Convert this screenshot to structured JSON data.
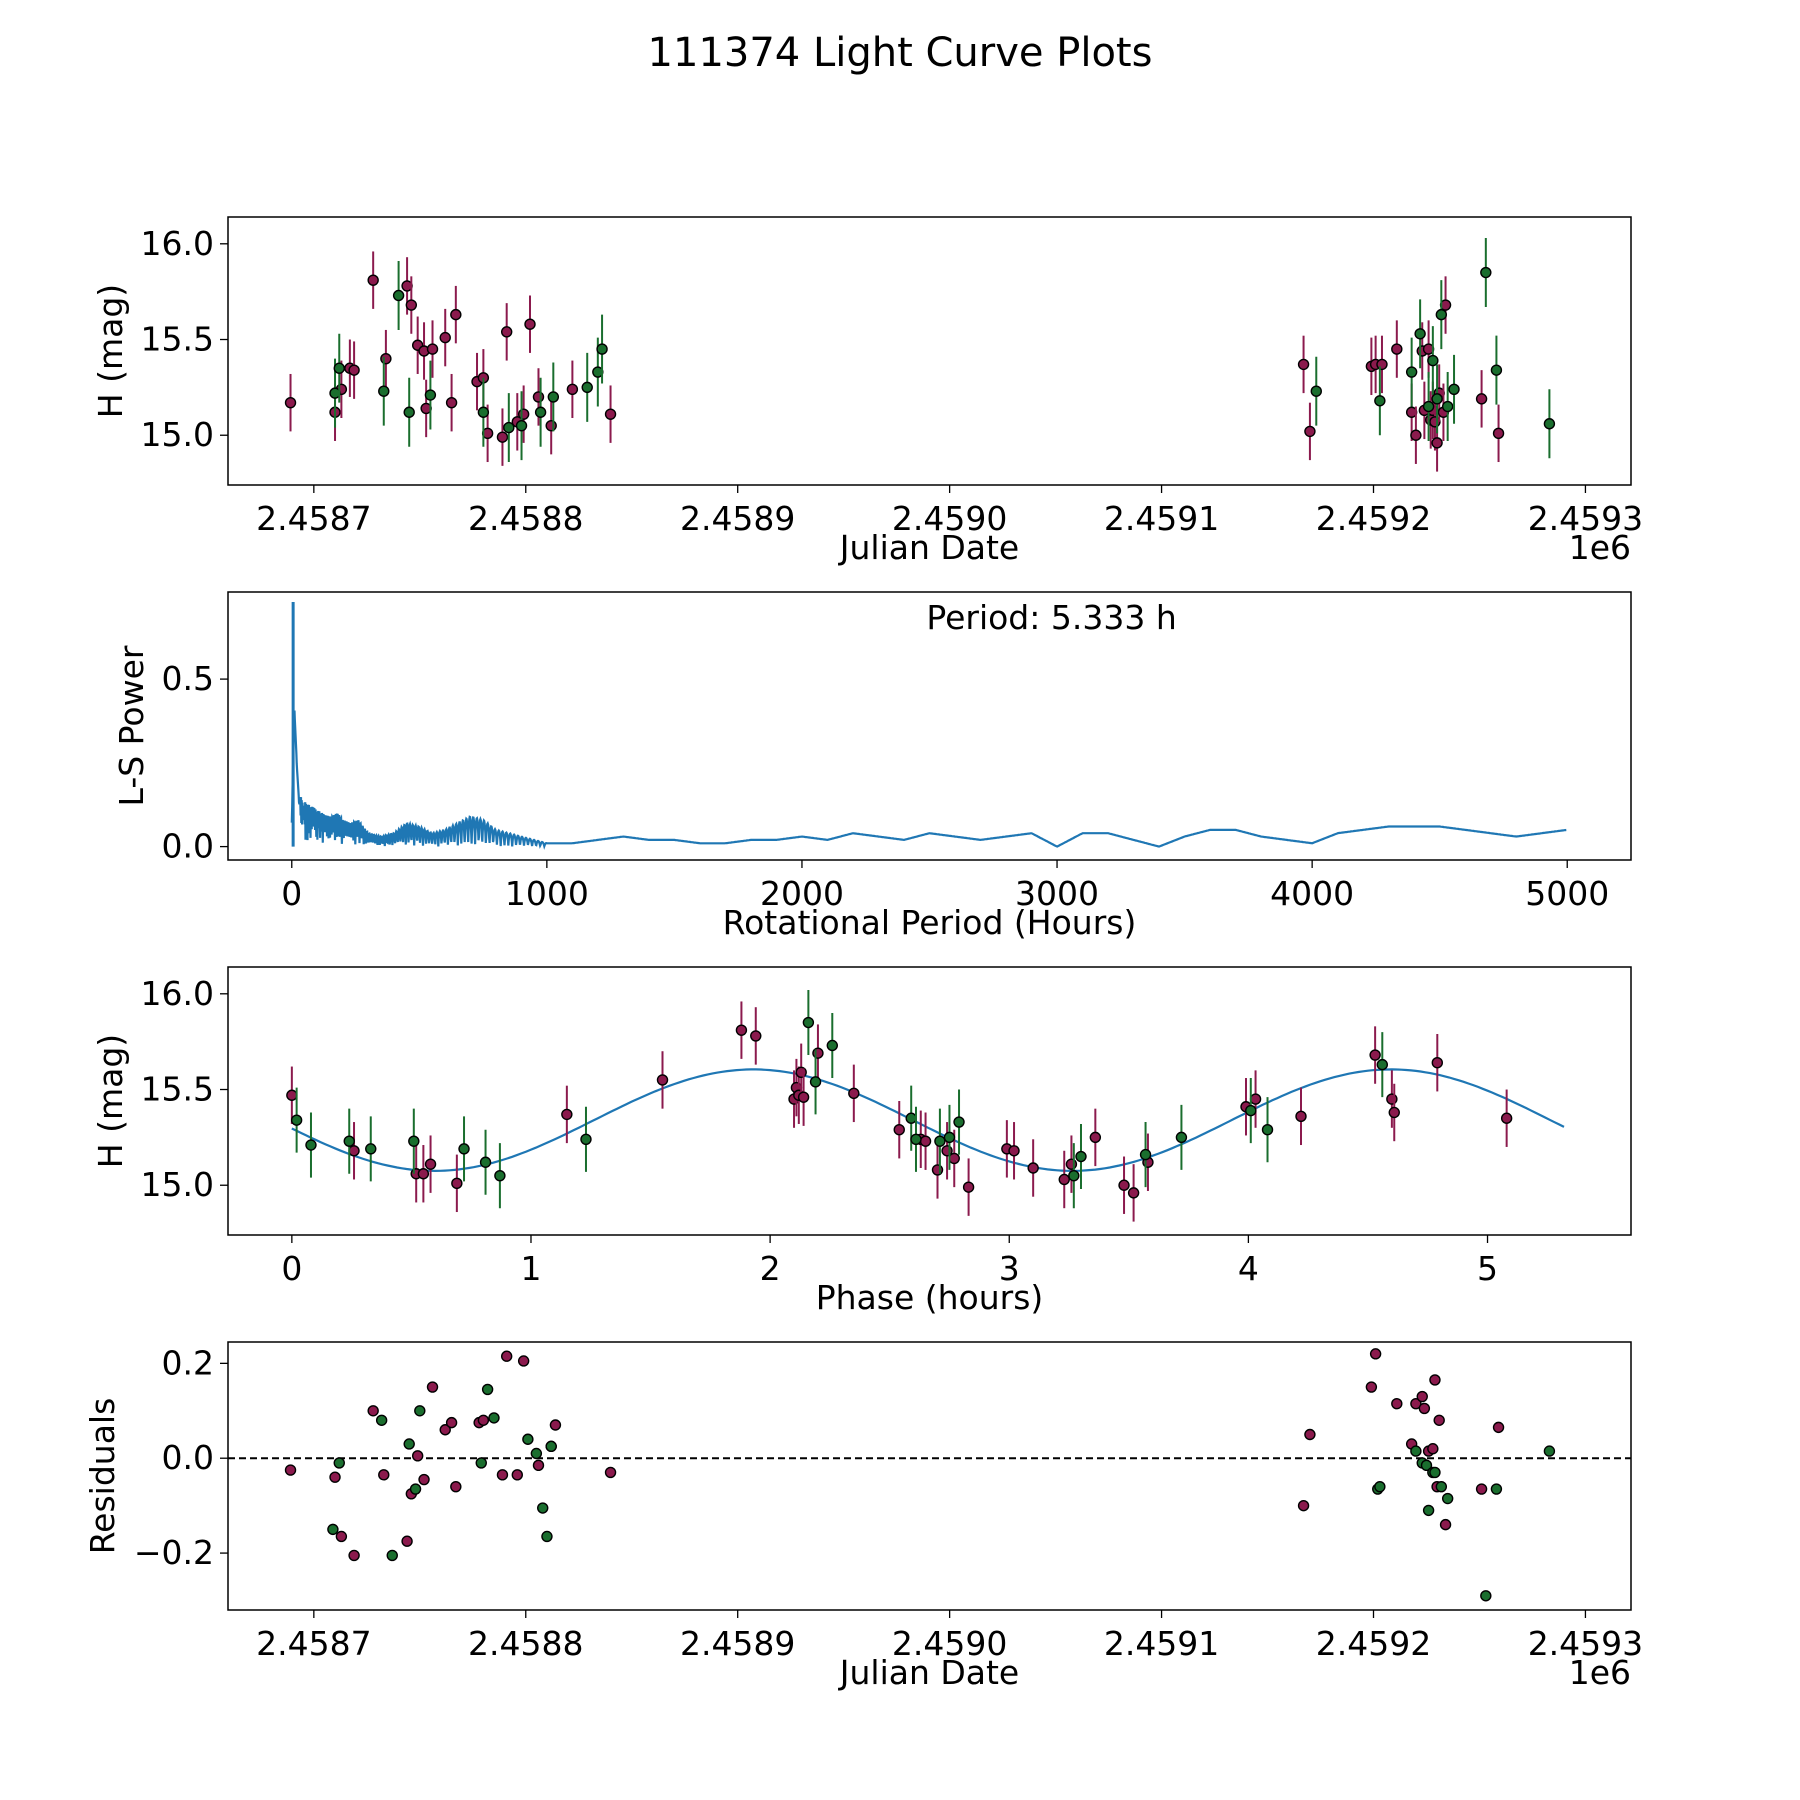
{
  "figure_title": "111374 Light Curve Plots",
  "colors": {
    "red": "#8b1a4d",
    "green": "#1a6e2e",
    "curve": "#1f77b4",
    "axis": "#000000",
    "marker_edge": "#000000"
  },
  "chart_data": [
    {
      "id": "lightcurve",
      "type": "scatter",
      "xlabel": "Julian Date",
      "ylabel": "H (mag)",
      "x_offset_label": "1e6",
      "xlim": [
        2458659.5,
        2459321.5
      ],
      "ylim": [
        14.74,
        16.14
      ],
      "x_ticks": [
        2458700,
        2458800,
        2458900,
        2459000,
        2459100,
        2459200,
        2459300
      ],
      "x_tick_labels": [
        "2.4587",
        "2.4588",
        "2.4589",
        "2.4590",
        "2.4591",
        "2.4592",
        "2.4593"
      ],
      "y_ticks": [
        15.0,
        15.5,
        16.0
      ],
      "y_tick_labels": [
        "15.0",
        "15.5",
        "16.0"
      ],
      "series": [
        {
          "name": "red",
          "color_key": "red",
          "err": 0.15,
          "x": [
            2458689,
            2458710,
            2458713,
            2458717,
            2458719,
            2458728,
            2458734,
            2458744,
            2458746,
            2458749,
            2458752,
            2458753,
            2458756,
            2458762,
            2458765,
            2458767,
            2458777,
            2458780,
            2458782,
            2458789,
            2458791,
            2458796,
            2458799,
            2458802,
            2458806,
            2458812,
            2458822,
            2458840,
            2459167,
            2459170,
            2459199,
            2459201,
            2459204,
            2459211,
            2459218,
            2459220,
            2459223,
            2459224,
            2459226,
            2459227,
            2459228,
            2459229,
            2459230,
            2459231,
            2459233,
            2459234,
            2459251,
            2459259
          ],
          "y": [
            15.17,
            15.12,
            15.24,
            15.35,
            15.34,
            15.81,
            15.4,
            15.78,
            15.68,
            15.47,
            15.44,
            15.14,
            15.45,
            15.51,
            15.17,
            15.63,
            15.28,
            15.3,
            15.01,
            14.99,
            15.54,
            15.07,
            15.11,
            15.58,
            15.2,
            15.05,
            15.24,
            15.11,
            15.37,
            15.02,
            15.36,
            15.37,
            15.37,
            15.45,
            15.12,
            15.0,
            15.44,
            15.13,
            15.45,
            15.08,
            15.13,
            15.07,
            14.96,
            15.22,
            15.12,
            15.68,
            15.19,
            15.01
          ]
        },
        {
          "name": "green",
          "color_key": "green",
          "err": 0.18,
          "x": [
            2458710,
            2458712,
            2458745,
            2458740,
            2458733,
            2458755,
            2458780,
            2458792,
            2458798,
            2458807,
            2458813,
            2458829,
            2458834,
            2458836,
            2459173,
            2459203,
            2459218,
            2459222,
            2459226,
            2459228,
            2459230,
            2459232,
            2459235,
            2459238,
            2459253,
            2459258,
            2459283
          ],
          "y": [
            15.22,
            15.35,
            15.12,
            15.73,
            15.23,
            15.21,
            15.12,
            15.04,
            15.05,
            15.12,
            15.2,
            15.25,
            15.33,
            15.45,
            15.23,
            15.18,
            15.33,
            15.53,
            15.15,
            15.39,
            15.19,
            15.63,
            15.15,
            15.24,
            15.85,
            15.34,
            15.06
          ]
        }
      ]
    },
    {
      "id": "periodogram",
      "type": "line",
      "xlabel": "Rotational Period (Hours)",
      "ylabel": "L-S Power",
      "annotation": "Period: 5.333 h",
      "xlim": [
        -250,
        5250
      ],
      "ylim": [
        -0.04,
        0.76
      ],
      "x_ticks": [
        0,
        1000,
        2000,
        3000,
        4000,
        5000
      ],
      "x_tick_labels": [
        "0",
        "1000",
        "2000",
        "3000",
        "4000",
        "5000"
      ],
      "y_ticks": [
        0.0,
        0.5
      ],
      "y_tick_labels": [
        "0.0",
        "0.5"
      ],
      "peak": {
        "x": 5.333,
        "y": 0.73
      },
      "series": [
        {
          "name": "L-S power",
          "color_key": "curve",
          "x": [
            0,
            10,
            20,
            30,
            40,
            60,
            80,
            100,
            120,
            150,
            180,
            200,
            230,
            260,
            300,
            350,
            400,
            450,
            500,
            550,
            600,
            650,
            700,
            750,
            800,
            850,
            900,
            950,
            1000,
            1100,
            1200,
            1300,
            1400,
            1500,
            1600,
            1700,
            1800,
            1900,
            2000,
            2100,
            2200,
            2300,
            2400,
            2500,
            2600,
            2700,
            2800,
            2900,
            3000,
            3100,
            3200,
            3300,
            3400,
            3500,
            3600,
            3700,
            3800,
            3900,
            4000,
            4100,
            4200,
            4300,
            4400,
            4500,
            4600,
            4700,
            4800,
            4900,
            5000
          ],
          "y": [
            0.13,
            0.72,
            0.4,
            0.18,
            0.14,
            0.13,
            0.12,
            0.11,
            0.1,
            0.09,
            0.1,
            0.08,
            0.07,
            0.08,
            0.04,
            0.03,
            0.04,
            0.07,
            0.06,
            0.04,
            0.05,
            0.07,
            0.09,
            0.08,
            0.05,
            0.04,
            0.03,
            0.02,
            0.01,
            0.01,
            0.02,
            0.03,
            0.02,
            0.02,
            0.01,
            0.01,
            0.02,
            0.02,
            0.03,
            0.02,
            0.04,
            0.03,
            0.02,
            0.04,
            0.03,
            0.02,
            0.03,
            0.04,
            0.0,
            0.04,
            0.04,
            0.02,
            0.0,
            0.03,
            0.05,
            0.05,
            0.03,
            0.02,
            0.01,
            0.04,
            0.05,
            0.06,
            0.06,
            0.06,
            0.05,
            0.04,
            0.03,
            0.04,
            0.05
          ]
        }
      ]
    },
    {
      "id": "phased",
      "type": "scatter",
      "xlabel": "Phase (hours)",
      "ylabel": "H (mag)",
      "xlim": [
        -0.267,
        5.6
      ],
      "ylim": [
        14.74,
        16.14
      ],
      "x_ticks": [
        0,
        1,
        2,
        3,
        4,
        5
      ],
      "x_tick_labels": [
        "0",
        "1",
        "2",
        "3",
        "4",
        "5"
      ],
      "y_ticks": [
        15.0,
        15.5,
        16.0
      ],
      "y_tick_labels": [
        "15.0",
        "15.5",
        "16.0"
      ],
      "model": {
        "period_hours": 5.333,
        "mean": 15.34,
        "amplitude": 0.265,
        "peak_phase": 1.93,
        "harmonic": 2,
        "x_end": 5.333,
        "color_key": "curve"
      },
      "series": [
        {
          "name": "red",
          "color_key": "red",
          "err": 0.15,
          "x": [
            0.0,
            0.26,
            0.52,
            0.55,
            0.58,
            0.69,
            1.15,
            1.55,
            1.88,
            1.94,
            2.1,
            2.11,
            2.12,
            2.13,
            2.14,
            2.2,
            2.35,
            2.54,
            2.63,
            2.65,
            2.7,
            2.74,
            2.77,
            2.83,
            2.99,
            3.02,
            3.1,
            3.23,
            3.26,
            3.36,
            3.48,
            3.52,
            3.58,
            3.99,
            4.03,
            4.22,
            4.53,
            4.6,
            4.61,
            4.79,
            5.08
          ],
          "y": [
            15.47,
            15.18,
            15.06,
            15.06,
            15.11,
            15.01,
            15.37,
            15.55,
            15.81,
            15.78,
            15.45,
            15.51,
            15.47,
            15.59,
            15.46,
            15.69,
            15.48,
            15.29,
            15.24,
            15.23,
            15.08,
            15.18,
            15.14,
            14.99,
            15.19,
            15.18,
            15.09,
            15.03,
            15.11,
            15.25,
            15.0,
            14.96,
            15.12,
            15.41,
            15.45,
            15.36,
            15.68,
            15.45,
            15.38,
            15.64,
            15.35
          ]
        },
        {
          "name": "green",
          "color_key": "green",
          "err": 0.17,
          "x": [
            0.02,
            0.08,
            0.24,
            0.33,
            0.51,
            0.72,
            0.81,
            0.87,
            1.23,
            2.16,
            2.19,
            2.26,
            2.59,
            2.61,
            2.71,
            2.75,
            2.79,
            3.27,
            3.3,
            3.57,
            3.72,
            4.01,
            4.08,
            4.56
          ],
          "y": [
            15.34,
            15.21,
            15.23,
            15.19,
            15.23,
            15.19,
            15.12,
            15.05,
            15.24,
            15.85,
            15.54,
            15.73,
            15.35,
            15.24,
            15.23,
            15.25,
            15.33,
            15.05,
            15.15,
            15.16,
            15.25,
            15.39,
            15.29,
            15.63
          ]
        }
      ]
    },
    {
      "id": "residuals",
      "type": "scatter",
      "xlabel": "Julian Date",
      "ylabel": "Residuals",
      "x_offset_label": "1e6",
      "xlim": [
        2458659.5,
        2459321.5
      ],
      "ylim": [
        -0.32,
        0.245
      ],
      "x_ticks": [
        2458700,
        2458800,
        2458900,
        2459000,
        2459100,
        2459200,
        2459300
      ],
      "x_tick_labels": [
        "2.4587",
        "2.4588",
        "2.4589",
        "2.4590",
        "2.4591",
        "2.4592",
        "2.4593"
      ],
      "y_ticks": [
        -0.2,
        0.0,
        0.2
      ],
      "y_tick_labels": [
        "−0.2",
        "0.0",
        "0.2"
      ],
      "reference_line": 0.0,
      "series": [
        {
          "name": "red",
          "color_key": "red",
          "x": [
            2458689,
            2458710,
            2458713,
            2458719,
            2458728,
            2458733,
            2458744,
            2458746,
            2458749,
            2458752,
            2458756,
            2458762,
            2458765,
            2458767,
            2458778,
            2458780,
            2458789,
            2458791,
            2458796,
            2458799,
            2458806,
            2458812,
            2458814,
            2458840,
            2459167,
            2459170,
            2459199,
            2459201,
            2459211,
            2459218,
            2459220,
            2459223,
            2459224,
            2459226,
            2459228,
            2459229,
            2459230,
            2459231,
            2459234,
            2459251,
            2459259
          ],
          "y": [
            -0.025,
            -0.04,
            -0.165,
            -0.205,
            0.1,
            -0.035,
            -0.175,
            -0.075,
            0.005,
            -0.045,
            0.15,
            0.06,
            0.075,
            -0.06,
            0.075,
            0.08,
            -0.035,
            0.215,
            -0.035,
            0.205,
            -0.015,
            0.025,
            0.07,
            -0.03,
            -0.1,
            0.05,
            0.15,
            0.22,
            0.115,
            0.03,
            0.115,
            0.13,
            0.105,
            0.015,
            0.02,
            0.165,
            -0.06,
            0.08,
            -0.14,
            -0.065,
            0.065
          ]
        },
        {
          "name": "green",
          "color_key": "green",
          "x": [
            2458709,
            2458712,
            2458732,
            2458737,
            2458745,
            2458748,
            2458750,
            2458779,
            2458782,
            2458785,
            2458801,
            2458805,
            2458808,
            2458810,
            2458812,
            2459202,
            2459203,
            2459220,
            2459223,
            2459225,
            2459226,
            2459228,
            2459229,
            2459232,
            2459235,
            2459253,
            2459258,
            2459283
          ],
          "y": [
            -0.15,
            -0.01,
            0.08,
            -0.205,
            0.03,
            -0.065,
            0.1,
            -0.01,
            0.145,
            0.085,
            0.04,
            0.01,
            -0.105,
            -0.165,
            0.025,
            -0.065,
            -0.06,
            0.015,
            -0.01,
            -0.015,
            -0.11,
            -0.03,
            -0.03,
            -0.06,
            -0.085,
            -0.29,
            -0.065,
            0.015
          ]
        }
      ]
    }
  ]
}
